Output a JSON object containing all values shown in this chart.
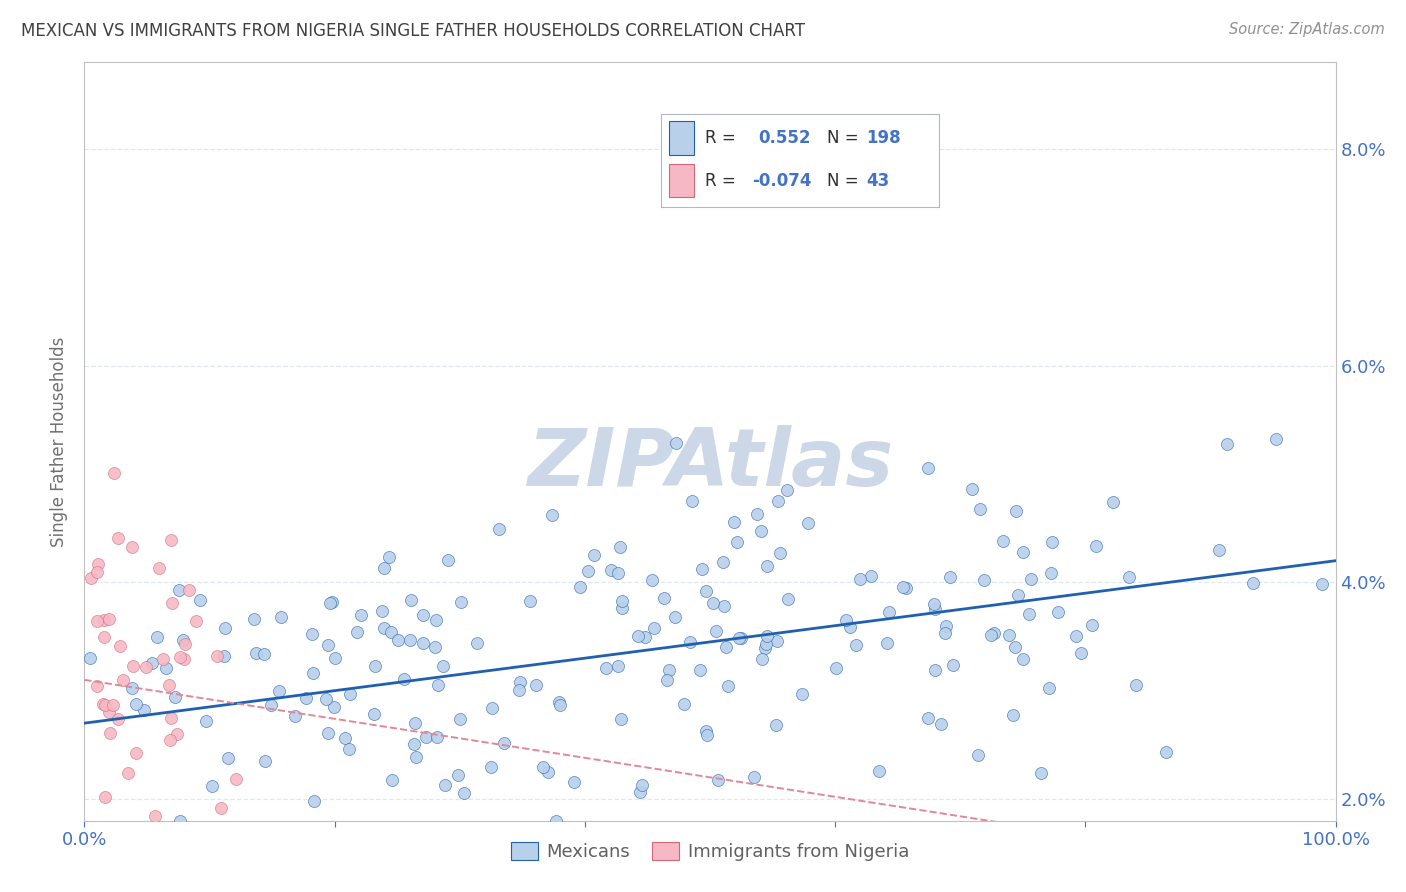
{
  "title": "MEXICAN VS IMMIGRANTS FROM NIGERIA SINGLE FATHER HOUSEHOLDS CORRELATION CHART",
  "source": "Source: ZipAtlas.com",
  "ylabel": "Single Father Households",
  "xlim": [
    0.0,
    1.0
  ],
  "ylim": [
    0.018,
    0.088
  ],
  "yticks": [
    0.02,
    0.04,
    0.06,
    0.08
  ],
  "xticks": [
    0.0,
    0.2,
    0.4,
    0.6,
    0.8,
    1.0
  ],
  "xtick_labels": [
    "0.0%",
    "",
    "",
    "",
    "",
    "100.0%"
  ],
  "ytick_labels": [
    "2.0%",
    "4.0%",
    "6.0%",
    "8.0%"
  ],
  "legend_labels": [
    "Mexicans",
    "Immigrants from Nigeria"
  ],
  "blue_R": 0.552,
  "blue_N": 198,
  "pink_R": -0.074,
  "pink_N": 43,
  "blue_color": "#b8d0ea",
  "pink_color": "#f5b8c4",
  "blue_line_color": "#2060b0",
  "pink_line_color": "#e08898",
  "title_color": "#404040",
  "axis_color": "#c0c0c0",
  "tick_color": "#4472c4",
  "watermark_color": "#ccd8e8",
  "background_color": "#ffffff",
  "grid_color": "#dde8f0"
}
